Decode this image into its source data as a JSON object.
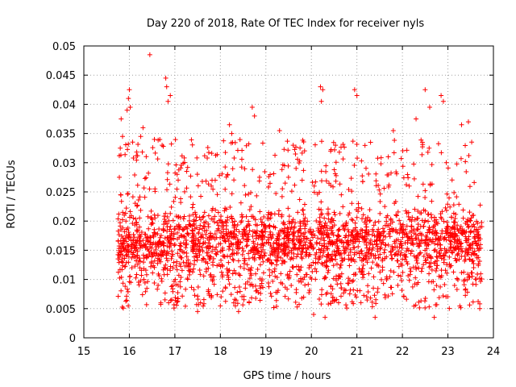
{
  "chart_data": {
    "type": "scatter",
    "title": "Day 220 of 2018, Rate Of TEC Index for receiver nyls",
    "xlabel": "GPS time / hours",
    "ylabel": "ROTI / TECUs",
    "xlim": [
      15,
      24
    ],
    "ylim": [
      0,
      0.05
    ],
    "xticks": [
      15,
      16,
      17,
      18,
      19,
      20,
      21,
      22,
      23,
      24
    ],
    "xtick_labels": [
      "15",
      "16",
      "17",
      "18",
      "19",
      "20",
      "21",
      "22",
      "23",
      "24"
    ],
    "yticks": [
      0,
      0.005,
      0.01,
      0.015,
      0.02,
      0.025,
      0.03,
      0.035,
      0.04,
      0.045,
      0.05
    ],
    "ytick_labels": [
      "0",
      "0.005",
      "0.01",
      "0.015",
      "0.02",
      "0.025",
      "0.03",
      "0.035",
      "0.04",
      "0.045",
      "0.05"
    ],
    "grid": true,
    "marker": "+",
    "color": "#ff0000",
    "data_range_x": [
      15.75,
      23.75
    ],
    "typical_range_y": [
      0.008,
      0.025
    ],
    "series": [
      {
        "name": "ROTI",
        "points": [
          [
            15.78,
            0.0275
          ],
          [
            15.8,
            0.0325
          ],
          [
            15.82,
            0.0375
          ],
          [
            15.85,
            0.0345
          ],
          [
            15.95,
            0.039
          ],
          [
            15.98,
            0.041
          ],
          [
            16.0,
            0.0425
          ],
          [
            16.02,
            0.0395
          ],
          [
            16.25,
            0.0345
          ],
          [
            16.3,
            0.036
          ],
          [
            16.45,
            0.0485
          ],
          [
            16.55,
            0.034
          ],
          [
            16.72,
            0.033
          ],
          [
            16.8,
            0.0445
          ],
          [
            16.82,
            0.043
          ],
          [
            16.85,
            0.0405
          ],
          [
            16.9,
            0.0415
          ],
          [
            17.05,
            0.028
          ],
          [
            17.5,
            0.0045
          ],
          [
            17.8,
            0.026
          ],
          [
            18.2,
            0.0365
          ],
          [
            18.25,
            0.035
          ],
          [
            18.4,
            0.0045
          ],
          [
            18.7,
            0.0395
          ],
          [
            18.75,
            0.038
          ],
          [
            19.3,
            0.0355
          ],
          [
            19.6,
            0.033
          ],
          [
            19.65,
            0.0315
          ],
          [
            20.2,
            0.043
          ],
          [
            20.25,
            0.0425
          ],
          [
            20.22,
            0.0405
          ],
          [
            20.3,
            0.0035
          ],
          [
            20.05,
            0.004
          ],
          [
            20.95,
            0.0425
          ],
          [
            21.0,
            0.0415
          ],
          [
            21.3,
            0.0335
          ],
          [
            21.4,
            0.0035
          ],
          [
            21.8,
            0.0355
          ],
          [
            22.3,
            0.0375
          ],
          [
            22.5,
            0.0425
          ],
          [
            22.6,
            0.0395
          ],
          [
            22.7,
            0.0035
          ],
          [
            22.85,
            0.0415
          ],
          [
            22.9,
            0.0405
          ],
          [
            23.3,
            0.0365
          ],
          [
            23.45,
            0.037
          ],
          [
            23.7,
            0.005
          ]
        ]
      }
    ]
  }
}
